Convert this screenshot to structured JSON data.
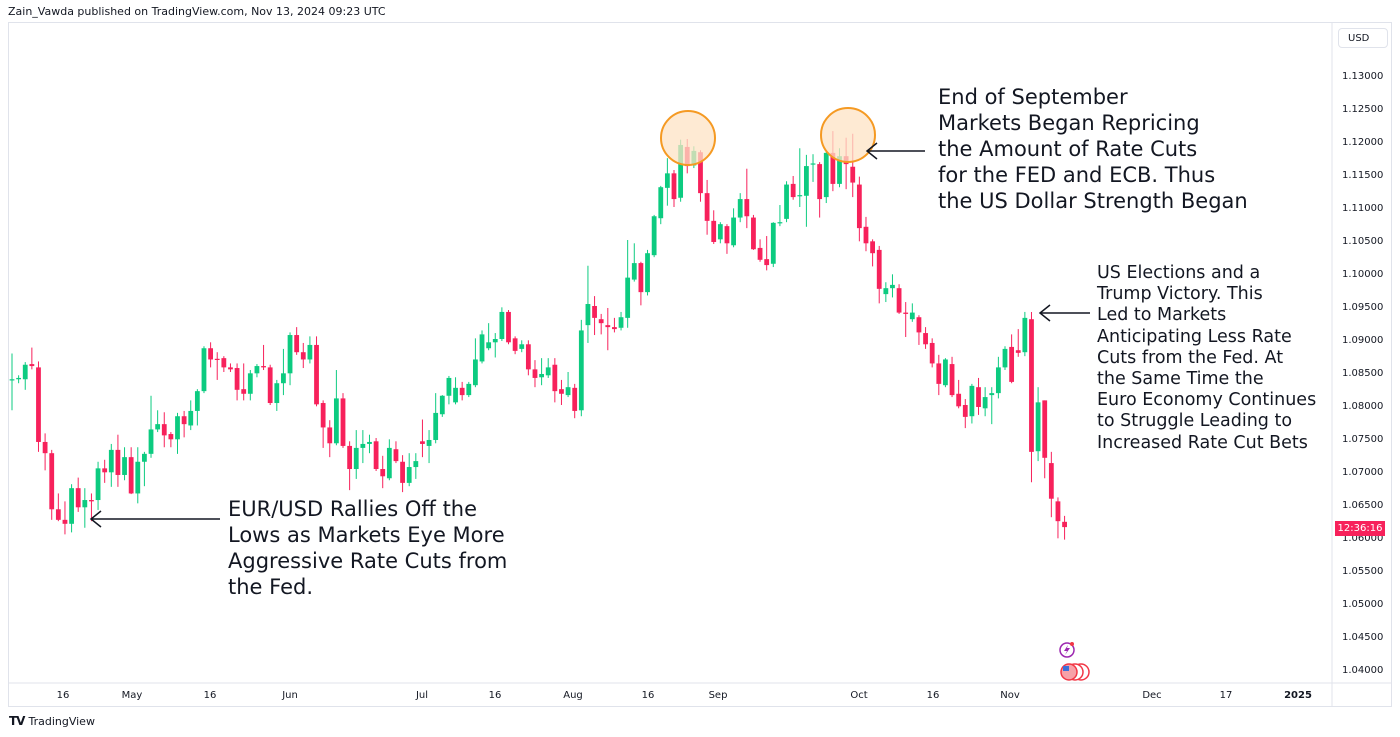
{
  "header": {
    "published": "Zain_Vawda published on TradingView.com, Nov 13, 2024 09:23 UTC"
  },
  "price_axis": {
    "currency": "USD",
    "countdown": "12:36:16",
    "countdown_color": "#f7215b"
  },
  "footer": {
    "brand": "TradingView"
  },
  "colors": {
    "up": "#0ccb80",
    "down": "#f7215b",
    "highlight_fill": "#fde3c4",
    "highlight_stroke": "#f59a23"
  },
  "annotations": [
    {
      "text": "EUR/USD Rallies Off the\nLows as Markets Eye More\nAggressive Rate Cuts from\nthe Fed."
    },
    {
      "text": "End of September\nMarkets Began Repricing\nthe Amount of Rate Cuts\nfor the FED and ECB. Thus\nthe US Dollar Strength Began"
    },
    {
      "text": "US Elections and a\nTrump Victory. This\nLed to Markets\nAnticipating Less Rate\nCuts from the Fed. At\nthe Same Time the\nEuro Economy Continues\nto Struggle Leading to\nIncreased Rate Cut Bets"
    }
  ],
  "event_icons": [
    "lightning-icon",
    "us-flag-icon"
  ],
  "chart_data": {
    "type": "candlestick",
    "ylim": [
      1.038,
      1.138
    ],
    "grid": false,
    "y_ticks": [
      "1.13000",
      "1.12500",
      "1.12000",
      "1.11500",
      "1.11000",
      "1.10500",
      "1.10000",
      "1.09500",
      "1.09000",
      "1.08500",
      "1.08000",
      "1.07500",
      "1.07000",
      "1.06500",
      "1.06000",
      "1.05500",
      "1.05000",
      "1.04500",
      "1.04000"
    ],
    "x_ticks": [
      "16",
      "May",
      "16",
      "Jun",
      "Jul",
      "16",
      "Aug",
      "16",
      "Sep",
      "Oct",
      "16",
      "Nov",
      "Dec",
      "17",
      "2025"
    ],
    "ohlc": [
      [
        1.0838,
        1.0878,
        1.0792,
        1.0839
      ],
      [
        1.0839,
        1.0845,
        1.0833,
        1.0841
      ],
      [
        1.0839,
        1.0865,
        1.0823,
        1.0861
      ],
      [
        1.0862,
        1.0887,
        1.0854,
        1.0859
      ],
      [
        1.0857,
        1.0866,
        1.0729,
        1.0744
      ],
      [
        1.0744,
        1.0757,
        1.0701,
        1.0727
      ],
      [
        1.0727,
        1.0732,
        1.0626,
        1.0642
      ],
      [
        1.0642,
        1.0666,
        1.0624,
        1.0626
      ],
      [
        1.0626,
        1.0654,
        1.0604,
        1.062
      ],
      [
        1.062,
        1.068,
        1.0607,
        1.0674
      ],
      [
        1.0674,
        1.069,
        1.0638,
        1.0645
      ],
      [
        1.0645,
        1.0674,
        1.0614,
        1.0656
      ],
      [
        1.0656,
        1.0666,
        1.0624,
        1.0654
      ],
      [
        1.0656,
        1.0714,
        1.0641,
        1.0704
      ],
      [
        1.0704,
        1.0717,
        1.0682,
        1.0698
      ],
      [
        1.0698,
        1.0741,
        1.0676,
        1.0732
      ],
      [
        1.0732,
        1.0755,
        1.0676,
        1.0694
      ],
      [
        1.0694,
        1.0736,
        1.0686,
        1.0721
      ],
      [
        1.0721,
        1.0736,
        1.0665,
        1.0666
      ],
      [
        1.0666,
        1.0736,
        1.0651,
        1.0714
      ],
      [
        1.0714,
        1.0729,
        1.0677,
        1.0726
      ],
      [
        1.0726,
        1.0814,
        1.072,
        1.0763
      ],
      [
        1.0763,
        1.0792,
        1.0759,
        1.0771
      ],
      [
        1.0771,
        1.0789,
        1.0736,
        1.0754
      ],
      [
        1.0756,
        1.0759,
        1.0736,
        1.0748
      ],
      [
        1.0748,
        1.0788,
        1.0726,
        1.0783
      ],
      [
        1.0783,
        1.0791,
        1.0751,
        1.0771
      ],
      [
        1.0769,
        1.0807,
        1.0762,
        1.0791
      ],
      [
        1.0791,
        1.0824,
        1.0769,
        1.0821
      ],
      [
        1.0821,
        1.0889,
        1.0818,
        1.0886
      ],
      [
        1.0886,
        1.0895,
        1.0857,
        1.0869
      ],
      [
        1.087,
        1.088,
        1.0838,
        1.0869
      ],
      [
        1.0871,
        1.0874,
        1.085,
        1.0857
      ],
      [
        1.0857,
        1.0863,
        1.085,
        1.0854
      ],
      [
        1.0856,
        1.0863,
        1.0807,
        1.0823
      ],
      [
        1.0824,
        1.0863,
        1.0807,
        1.0817
      ],
      [
        1.0817,
        1.0853,
        1.0807,
        1.0848
      ],
      [
        1.0848,
        1.0862,
        1.0842,
        1.0859
      ],
      [
        1.0859,
        1.0891,
        1.0853,
        1.0857
      ],
      [
        1.0857,
        1.0861,
        1.08,
        1.0803
      ],
      [
        1.0803,
        1.0838,
        1.0791,
        1.0833
      ],
      [
        1.0833,
        1.0885,
        1.0815,
        1.0848
      ],
      [
        1.0848,
        1.091,
        1.083,
        1.0906
      ],
      [
        1.0906,
        1.0918,
        1.0876,
        1.088
      ],
      [
        1.088,
        1.0894,
        1.0856,
        1.0869
      ],
      [
        1.0869,
        1.0904,
        1.0863,
        1.0891
      ],
      [
        1.0891,
        1.0904,
        1.0798,
        1.0801
      ],
      [
        1.0803,
        1.0807,
        1.0735,
        1.0766
      ],
      [
        1.0766,
        1.0777,
        1.0721,
        1.0742
      ],
      [
        1.0742,
        1.0853,
        1.0739,
        1.081
      ],
      [
        1.081,
        1.0818,
        1.0735,
        1.0738
      ],
      [
        1.0738,
        1.0745,
        1.0671,
        1.0703
      ],
      [
        1.0703,
        1.0762,
        1.0688,
        1.0735
      ],
      [
        1.0735,
        1.0762,
        1.0712,
        1.0741
      ],
      [
        1.0741,
        1.0755,
        1.0727,
        1.0744
      ],
      [
        1.0745,
        1.075,
        1.07,
        1.0703
      ],
      [
        1.0703,
        1.0723,
        1.0674,
        1.0692
      ],
      [
        1.0689,
        1.0748,
        1.0686,
        1.0735
      ],
      [
        1.0733,
        1.0745,
        1.0712,
        1.0715
      ],
      [
        1.0714,
        1.0724,
        1.0668,
        1.0682
      ],
      [
        1.0682,
        1.0727,
        1.0677,
        1.0706
      ],
      [
        1.0706,
        1.0727,
        1.0688,
        1.0715
      ],
      [
        1.0745,
        1.0778,
        1.0721,
        1.0741
      ],
      [
        1.0738,
        1.0762,
        1.0712,
        1.0747
      ],
      [
        1.0747,
        1.0818,
        1.0742,
        1.0788
      ],
      [
        1.0786,
        1.0815,
        1.0782,
        1.0814
      ],
      [
        1.0814,
        1.0844,
        1.0801,
        1.0841
      ],
      [
        1.0804,
        1.0842,
        1.0801,
        1.0826
      ],
      [
        1.0826,
        1.0835,
        1.0807,
        1.0815
      ],
      [
        1.0815,
        1.0835,
        1.0812,
        1.0832
      ],
      [
        1.083,
        1.0901,
        1.0827,
        1.0869
      ],
      [
        1.0866,
        1.0913,
        1.0863,
        1.0907
      ],
      [
        1.0886,
        1.0924,
        1.0883,
        1.0895
      ],
      [
        1.0895,
        1.0909,
        1.0872,
        1.09
      ],
      [
        1.09,
        1.0948,
        1.0897,
        1.0941
      ],
      [
        1.0941,
        1.0944,
        1.0892,
        1.0895
      ],
      [
        1.0901,
        1.0904,
        1.0877,
        1.0882
      ],
      [
        1.0885,
        1.0898,
        1.088,
        1.0892
      ],
      [
        1.0892,
        1.0898,
        1.0845,
        1.0854
      ],
      [
        1.0854,
        1.0868,
        1.0827,
        1.0841
      ],
      [
        1.0842,
        1.0871,
        1.083,
        1.0847
      ],
      [
        1.0845,
        1.0871,
        1.0841,
        1.0857
      ],
      [
        1.0861,
        1.0871,
        1.0804,
        1.0821
      ],
      [
        1.0824,
        1.0838,
        1.08,
        1.0817
      ],
      [
        1.0815,
        1.085,
        1.0812,
        1.0827
      ],
      [
        1.0826,
        1.0832,
        1.078,
        1.0791
      ],
      [
        1.0792,
        1.0929,
        1.0783,
        1.0913
      ],
      [
        1.0921,
        1.1011,
        1.0894,
        1.0953
      ],
      [
        1.095,
        1.0965,
        1.0906,
        1.0932
      ],
      [
        1.093,
        1.0938,
        1.0907,
        1.0924
      ],
      [
        1.0921,
        1.0947,
        1.0883,
        1.0918
      ],
      [
        1.0918,
        1.0932,
        1.091,
        1.0915
      ],
      [
        1.0917,
        1.0941,
        1.0913,
        1.0933
      ],
      [
        1.0932,
        1.105,
        1.0917,
        1.0993
      ],
      [
        1.099,
        1.1045,
        1.0987,
        1.1015
      ],
      [
        1.1015,
        1.1017,
        1.0951,
        1.0971
      ],
      [
        1.0971,
        1.1035,
        1.0966,
        1.103
      ],
      [
        1.1027,
        1.1088,
        1.1024,
        1.1086
      ],
      [
        1.1083,
        1.1132,
        1.1074,
        1.113
      ],
      [
        1.1129,
        1.1174,
        1.1102,
        1.1151
      ],
      [
        1.1151,
        1.1156,
        1.11,
        1.1112
      ],
      [
        1.1114,
        1.1202,
        1.1108,
        1.1194
      ],
      [
        1.1191,
        1.1203,
        1.1151,
        1.1162
      ],
      [
        1.1163,
        1.1192,
        1.1159,
        1.1185
      ],
      [
        1.1183,
        1.1186,
        1.1108,
        1.1121
      ],
      [
        1.1121,
        1.1141,
        1.1058,
        1.1079
      ],
      [
        1.1079,
        1.1095,
        1.1044,
        1.1047
      ],
      [
        1.1051,
        1.1077,
        1.1045,
        1.1074
      ],
      [
        1.1071,
        1.1074,
        1.1029,
        1.1045
      ],
      [
        1.1042,
        1.1098,
        1.1039,
        1.1084
      ],
      [
        1.1084,
        1.1121,
        1.1077,
        1.1112
      ],
      [
        1.1112,
        1.1158,
        1.1068,
        1.1086
      ],
      [
        1.1084,
        1.1088,
        1.1035,
        1.1036
      ],
      [
        1.1038,
        1.1051,
        1.1017,
        1.102
      ],
      [
        1.1021,
        1.1056,
        1.1004,
        1.1012
      ],
      [
        1.1014,
        1.1077,
        1.1009,
        1.1076
      ],
      [
        1.1076,
        1.1103,
        1.1071,
        1.1077
      ],
      [
        1.1082,
        1.1139,
        1.1077,
        1.1134
      ],
      [
        1.1135,
        1.1147,
        1.1111,
        1.1115
      ],
      [
        1.1117,
        1.1189,
        1.11,
        1.1118
      ],
      [
        1.1117,
        1.1179,
        1.107,
        1.1162
      ],
      [
        1.1165,
        1.118,
        1.1138,
        1.1166
      ],
      [
        1.1165,
        1.1168,
        1.1084,
        1.1112
      ],
      [
        1.1115,
        1.1183,
        1.1106,
        1.1182
      ],
      [
        1.1182,
        1.1215,
        1.1124,
        1.1135
      ],
      [
        1.1135,
        1.1189,
        1.113,
        1.1177
      ],
      [
        1.1177,
        1.1205,
        1.1127,
        1.1165
      ],
      [
        1.1161,
        1.1211,
        1.1115,
        1.1137
      ],
      [
        1.1134,
        1.1146,
        1.1048,
        1.1068
      ],
      [
        1.107,
        1.1085,
        1.1033,
        1.1045
      ],
      [
        1.1048,
        1.1051,
        1.101,
        1.103
      ],
      [
        1.1035,
        1.1041,
        1.0954,
        1.0976
      ],
      [
        1.0968,
        1.0986,
        1.0956,
        1.0977
      ],
      [
        1.0977,
        1.0998,
        1.0963,
        1.0982
      ],
      [
        1.0977,
        1.0983,
        1.0938,
        1.094
      ],
      [
        1.094,
        1.0956,
        1.0903,
        1.0938
      ],
      [
        1.093,
        1.0954,
        1.0926,
        1.094
      ],
      [
        1.0933,
        1.0936,
        1.0891,
        1.091
      ],
      [
        1.0909,
        1.0918,
        1.0885,
        1.0892
      ],
      [
        1.0894,
        1.0901,
        1.0857,
        1.0863
      ],
      [
        1.0863,
        1.0876,
        1.0815,
        1.0832
      ],
      [
        1.083,
        1.0871,
        1.0827,
        1.0869
      ],
      [
        1.0862,
        1.0873,
        1.0812,
        1.0815
      ],
      [
        1.0817,
        1.0838,
        1.0795,
        1.0798
      ],
      [
        1.08,
        1.0809,
        1.0765,
        1.0782
      ],
      [
        1.0783,
        1.0832,
        1.0772,
        1.0829
      ],
      [
        1.0827,
        1.0841,
        1.0785,
        1.0797
      ],
      [
        1.0795,
        1.0827,
        1.0783,
        1.0812
      ],
      [
        1.0815,
        1.0827,
        1.0771,
        1.0818
      ],
      [
        1.0818,
        1.0873,
        1.081,
        1.0857
      ],
      [
        1.0857,
        1.0889,
        1.0853,
        1.0885
      ],
      [
        1.0888,
        1.0907,
        1.0833,
        1.0835
      ],
      [
        1.0883,
        1.0915,
        1.0873,
        1.0879
      ],
      [
        1.088,
        1.0941,
        1.0874,
        1.0932
      ],
      [
        1.093,
        1.0941,
        1.0683,
        1.0729
      ],
      [
        1.073,
        1.0827,
        1.0715,
        1.0804
      ],
      [
        1.0807,
        1.0807,
        1.0689,
        1.072
      ],
      [
        1.0712,
        1.0729,
        1.063,
        1.0658
      ],
      [
        1.0654,
        1.066,
        1.0598,
        1.0624
      ],
      [
        1.0623,
        1.0632,
        1.0596,
        1.0615
      ]
    ]
  }
}
